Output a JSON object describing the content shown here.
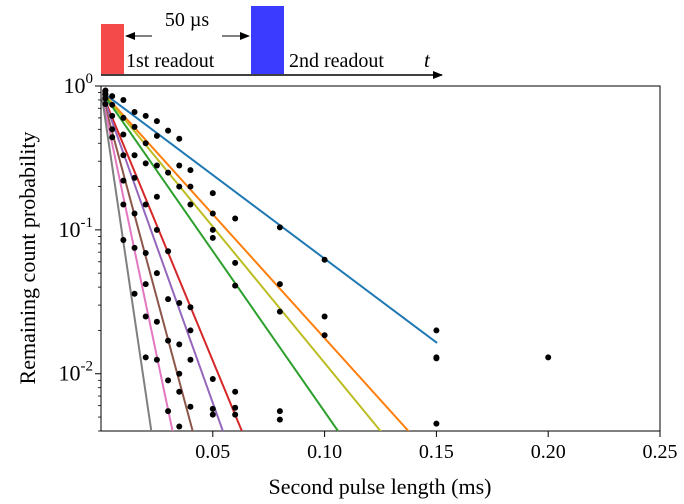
{
  "chart_data": {
    "type": "scatter",
    "xlabel": "Second pulse length (ms)",
    "ylabel": "Remaining count probability",
    "xlim": [
      0,
      0.25
    ],
    "ylim": [
      0.004,
      1.0
    ],
    "yscale": "log",
    "x_ticks": [
      {
        "value": 0.05,
        "label": "0.05"
      },
      {
        "value": 0.1,
        "label": "0.10"
      },
      {
        "value": 0.15,
        "label": "0.15"
      },
      {
        "value": 0.2,
        "label": "0.20"
      },
      {
        "value": 0.25,
        "label": "0.25"
      }
    ],
    "y_ticks": [
      {
        "value": 1.0,
        "base": "10",
        "exp": "0"
      },
      {
        "value": 0.1,
        "base": "10",
        "exp": "-1"
      },
      {
        "value": 0.01,
        "base": "10",
        "exp": "-2"
      }
    ],
    "grid": false,
    "legend": "none",
    "fit_color_order": [
      "blue",
      "orange",
      "yellow-green",
      "green",
      "red",
      "purple",
      "brown",
      "pink",
      "gray"
    ],
    "fits": [
      {
        "color": "#1f77b4",
        "x0": 0.0,
        "y0": 0.92,
        "x1": 0.15,
        "y1": 0.0165
      },
      {
        "color": "#ff7f0e",
        "x0": 0.0,
        "y0": 0.93,
        "x1": 0.1375,
        "y1": 0.004
      },
      {
        "color": "#bcbd22",
        "x0": 0.0,
        "y0": 0.93,
        "x1": 0.125,
        "y1": 0.004
      },
      {
        "color": "#2ca02c",
        "x0": 0.0,
        "y0": 0.93,
        "x1": 0.106,
        "y1": 0.004
      },
      {
        "color": "#d62728",
        "x0": 0.0,
        "y0": 0.93,
        "x1": 0.063,
        "y1": 0.004
      },
      {
        "color": "#9467bd",
        "x0": 0.0,
        "y0": 0.93,
        "x1": 0.0545,
        "y1": 0.004
      },
      {
        "color": "#8c564b",
        "x0": 0.0,
        "y0": 0.93,
        "x1": 0.041,
        "y1": 0.004
      },
      {
        "color": "#e377c2",
        "x0": 0.0,
        "y0": 0.93,
        "x1": 0.032,
        "y1": 0.004
      },
      {
        "color": "#7f7f7f",
        "x0": 0.0,
        "y0": 0.93,
        "x1": 0.0225,
        "y1": 0.004
      }
    ],
    "points": [
      {
        "x": 0.002,
        "y": 0.93
      },
      {
        "x": 0.002,
        "y": 0.88
      },
      {
        "x": 0.002,
        "y": 0.82
      },
      {
        "x": 0.002,
        "y": 0.75
      },
      {
        "x": 0.005,
        "y": 0.85
      },
      {
        "x": 0.005,
        "y": 0.74
      },
      {
        "x": 0.005,
        "y": 0.62
      },
      {
        "x": 0.005,
        "y": 0.5
      },
      {
        "x": 0.005,
        "y": 0.44
      },
      {
        "x": 0.01,
        "y": 0.8
      },
      {
        "x": 0.01,
        "y": 0.6
      },
      {
        "x": 0.01,
        "y": 0.46
      },
      {
        "x": 0.01,
        "y": 0.33
      },
      {
        "x": 0.01,
        "y": 0.22
      },
      {
        "x": 0.01,
        "y": 0.15
      },
      {
        "x": 0.01,
        "y": 0.085
      },
      {
        "x": 0.015,
        "y": 0.66
      },
      {
        "x": 0.015,
        "y": 0.52
      },
      {
        "x": 0.015,
        "y": 0.33
      },
      {
        "x": 0.015,
        "y": 0.23
      },
      {
        "x": 0.015,
        "y": 0.13
      },
      {
        "x": 0.015,
        "y": 0.075
      },
      {
        "x": 0.015,
        "y": 0.036
      },
      {
        "x": 0.02,
        "y": 0.62
      },
      {
        "x": 0.02,
        "y": 0.4
      },
      {
        "x": 0.02,
        "y": 0.29
      },
      {
        "x": 0.02,
        "y": 0.15
      },
      {
        "x": 0.02,
        "y": 0.069
      },
      {
        "x": 0.02,
        "y": 0.042
      },
      {
        "x": 0.02,
        "y": 0.025
      },
      {
        "x": 0.02,
        "y": 0.013
      },
      {
        "x": 0.025,
        "y": 0.57
      },
      {
        "x": 0.025,
        "y": 0.45
      },
      {
        "x": 0.025,
        "y": 0.28
      },
      {
        "x": 0.025,
        "y": 0.17
      },
      {
        "x": 0.025,
        "y": 0.1
      },
      {
        "x": 0.025,
        "y": 0.05
      },
      {
        "x": 0.025,
        "y": 0.023
      },
      {
        "x": 0.025,
        "y": 0.0125
      },
      {
        "x": 0.03,
        "y": 0.49
      },
      {
        "x": 0.03,
        "y": 0.25
      },
      {
        "x": 0.03,
        "y": 0.071
      },
      {
        "x": 0.03,
        "y": 0.033
      },
      {
        "x": 0.03,
        "y": 0.017
      },
      {
        "x": 0.03,
        "y": 0.009
      },
      {
        "x": 0.03,
        "y": 0.0055
      },
      {
        "x": 0.035,
        "y": 0.43
      },
      {
        "x": 0.035,
        "y": 0.28
      },
      {
        "x": 0.035,
        "y": 0.2
      },
      {
        "x": 0.035,
        "y": 0.031
      },
      {
        "x": 0.035,
        "y": 0.016
      },
      {
        "x": 0.035,
        "y": 0.01
      },
      {
        "x": 0.035,
        "y": 0.0075
      },
      {
        "x": 0.035,
        "y": 0.0043
      },
      {
        "x": 0.04,
        "y": 0.26
      },
      {
        "x": 0.04,
        "y": 0.2
      },
      {
        "x": 0.04,
        "y": 0.15
      },
      {
        "x": 0.04,
        "y": 0.029
      },
      {
        "x": 0.04,
        "y": 0.02
      },
      {
        "x": 0.04,
        "y": 0.0125
      },
      {
        "x": 0.04,
        "y": 0.0059
      },
      {
        "x": 0.05,
        "y": 0.18
      },
      {
        "x": 0.05,
        "y": 0.13
      },
      {
        "x": 0.05,
        "y": 0.1
      },
      {
        "x": 0.05,
        "y": 0.088
      },
      {
        "x": 0.05,
        "y": 0.0092
      },
      {
        "x": 0.05,
        "y": 0.0057
      },
      {
        "x": 0.05,
        "y": 0.0052
      },
      {
        "x": 0.06,
        "y": 0.12
      },
      {
        "x": 0.06,
        "y": 0.059
      },
      {
        "x": 0.06,
        "y": 0.041
      },
      {
        "x": 0.06,
        "y": 0.0075
      },
      {
        "x": 0.06,
        "y": 0.0058
      },
      {
        "x": 0.06,
        "y": 0.0052
      },
      {
        "x": 0.08,
        "y": 0.104
      },
      {
        "x": 0.08,
        "y": 0.042
      },
      {
        "x": 0.08,
        "y": 0.027
      },
      {
        "x": 0.08,
        "y": 0.0055
      },
      {
        "x": 0.08,
        "y": 0.0048
      },
      {
        "x": 0.1,
        "y": 0.062
      },
      {
        "x": 0.1,
        "y": 0.025
      },
      {
        "x": 0.1,
        "y": 0.0185
      },
      {
        "x": 0.15,
        "y": 0.02
      },
      {
        "x": 0.15,
        "y": 0.013
      },
      {
        "x": 0.15,
        "y": 0.0128
      },
      {
        "x": 0.15,
        "y": 0.0045
      },
      {
        "x": 0.2,
        "y": 0.013
      }
    ]
  },
  "inset": {
    "delay_label": "50 µs",
    "first_readout_label": "1st readout",
    "second_readout_label": "2nd readout",
    "time_label": "t",
    "first_pulse_color": "#f44a4a",
    "second_pulse_color": "#3b3bff"
  }
}
